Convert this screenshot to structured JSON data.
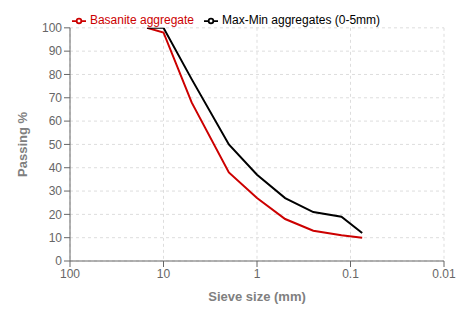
{
  "chart_data": {
    "type": "line",
    "xlabel": "Sieve size (mm)",
    "ylabel": "Passing %",
    "x": [
      15,
      10,
      5,
      2,
      1,
      0.5,
      0.25,
      0.125,
      0.075
    ],
    "series": [
      {
        "name": "Basanite aggregate",
        "color": "#cc0000",
        "values": [
          100,
          98,
          68,
          38,
          27,
          18,
          13,
          11,
          10
        ]
      },
      {
        "name": "Max-Min aggregates (0-5mm)",
        "color": "#000000",
        "values": [
          100,
          100,
          78,
          50,
          37,
          27,
          21,
          19,
          12
        ]
      }
    ],
    "xlim": [
      100,
      0.01
    ],
    "ylim": [
      0,
      100
    ],
    "xticks": [
      100,
      10,
      1,
      0.1,
      0.01
    ],
    "yticks": [
      0,
      10,
      20,
      30,
      40,
      50,
      60,
      70,
      80,
      90,
      100
    ],
    "log": "x",
    "grid": true,
    "legend": "top"
  }
}
